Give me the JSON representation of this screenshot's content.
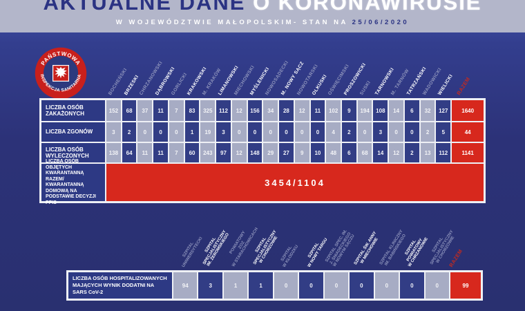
{
  "header": {
    "title_dark": "AKTUALNE DANE",
    "title_light": "O KORONAWIRUSIE",
    "subtitle": "W WOJEWÓDZTWIE MAŁOPOLSKIM- STAN NA",
    "date": "25/06/2020"
  },
  "logo": {
    "text_top": "PAŃSTWOWA",
    "text_bottom": "INSPEKCJA SANITARNA"
  },
  "razem_label": "RAZEM",
  "colors": {
    "header_band": "#b3b6ca",
    "navy_cell": "#323d85",
    "light_cell": "#a7acc4",
    "red": "#d7281d",
    "razem_header_red": "#c42a1e",
    "background_blue": "#2c3278"
  },
  "chart_data": [
    {
      "type": "table",
      "categories": [
        "BOCHEŃSKI",
        "BRZESKI",
        "CHRZANOWSKI",
        "DĄBROWSKI",
        "GORLICKI",
        "KRAKOWSKI",
        "M. KRAKÓW",
        "LIMANOWSKI",
        "MIECHOWSKI",
        "MYŚLENICKI",
        "NOWOSĄDECKI",
        "M. NOWY SĄCZ",
        "NOWOTARSKI",
        "OLKUSKI",
        "OŚWIĘCIMSKI",
        "PROSZOWICKI",
        "SUSKI",
        "TARNOWSKI",
        "M. TARNÓW",
        "TATRZAŃSKI",
        "WADOWICKI",
        "WIELICKI"
      ],
      "total_column": "RAZEM",
      "series": [
        {
          "name": "LICZBA OSÓB ZAKAŻONYCH",
          "values": [
            152,
            68,
            37,
            11,
            7,
            83,
            325,
            112,
            12,
            156,
            34,
            28,
            12,
            11,
            102,
            9,
            194,
            108,
            14,
            6,
            32,
            127
          ],
          "total": 1640
        },
        {
          "name": "LICZBA ZGONÓW",
          "values": [
            3,
            2,
            0,
            0,
            0,
            1,
            19,
            3,
            0,
            0,
            0,
            0,
            0,
            0,
            4,
            2,
            0,
            3,
            0,
            0,
            2,
            5
          ],
          "total": 44
        },
        {
          "name": "LICZBA OSÓB WYLECZONYCH",
          "values": [
            138,
            64,
            11,
            11,
            7,
            60,
            243,
            97,
            12,
            148,
            29,
            27,
            9,
            10,
            48,
            6,
            68,
            14,
            12,
            2,
            13,
            112
          ],
          "total": 1141
        }
      ],
      "quarantine": {
        "label": "LICZBA OSÓB OBJĘTYCH KWARANTANNĄ RAZEM/ KWARANTANNĄ DOMOWĄ NA PODSTAWIE DECYZJI PPIS",
        "value": "3454/1104"
      }
    },
    {
      "type": "table",
      "categories": [
        [
          "SZPITAL",
          "UNIWERSYTECKI"
        ],
        [
          "SZPITAL",
          "SPECJALISTYCZNY",
          "IM. ŻEROMSKIEGO"
        ],
        [
          "POWIATOWY",
          "ZOZ",
          "W STARACHOWICACH"
        ],
        [
          "SZPITAL",
          "SPECJALISTYCZNY",
          "W CHORZOWIE"
        ],
        [
          "SZPITAL",
          "W KŁODZKU"
        ],
        [
          "SZPITAL",
          "W NOWY TARGU"
        ],
        [
          "SZPITAL SPEC. IM.",
          "J. ŚNIADECKIEGO",
          "W NOWYM SĄCZU"
        ],
        [
          "SZPITAL ŚW. ANNY",
          "W MIECHOWIE"
        ],
        [
          "SZPITAL KLINICZNY",
          "IM. BABIŃSKIEGO"
        ],
        [
          "SZPITAL",
          "POWIATOWY",
          "W CHRZANOWIE"
        ],
        [
          "SZPITAL",
          "SPECJALISTYCZNY",
          "W CHORZOWIE"
        ]
      ],
      "total_column": "RAZEM",
      "series": [
        {
          "name": "LICZBA OSÓB HOSPITALIZOWANYCH MAJĄCYCH WYNIK DODATNI NA SARS CoV-2",
          "values": [
            94,
            3,
            1,
            1,
            0,
            0,
            0,
            0,
            0,
            0,
            0
          ],
          "total": 99
        }
      ]
    }
  ]
}
